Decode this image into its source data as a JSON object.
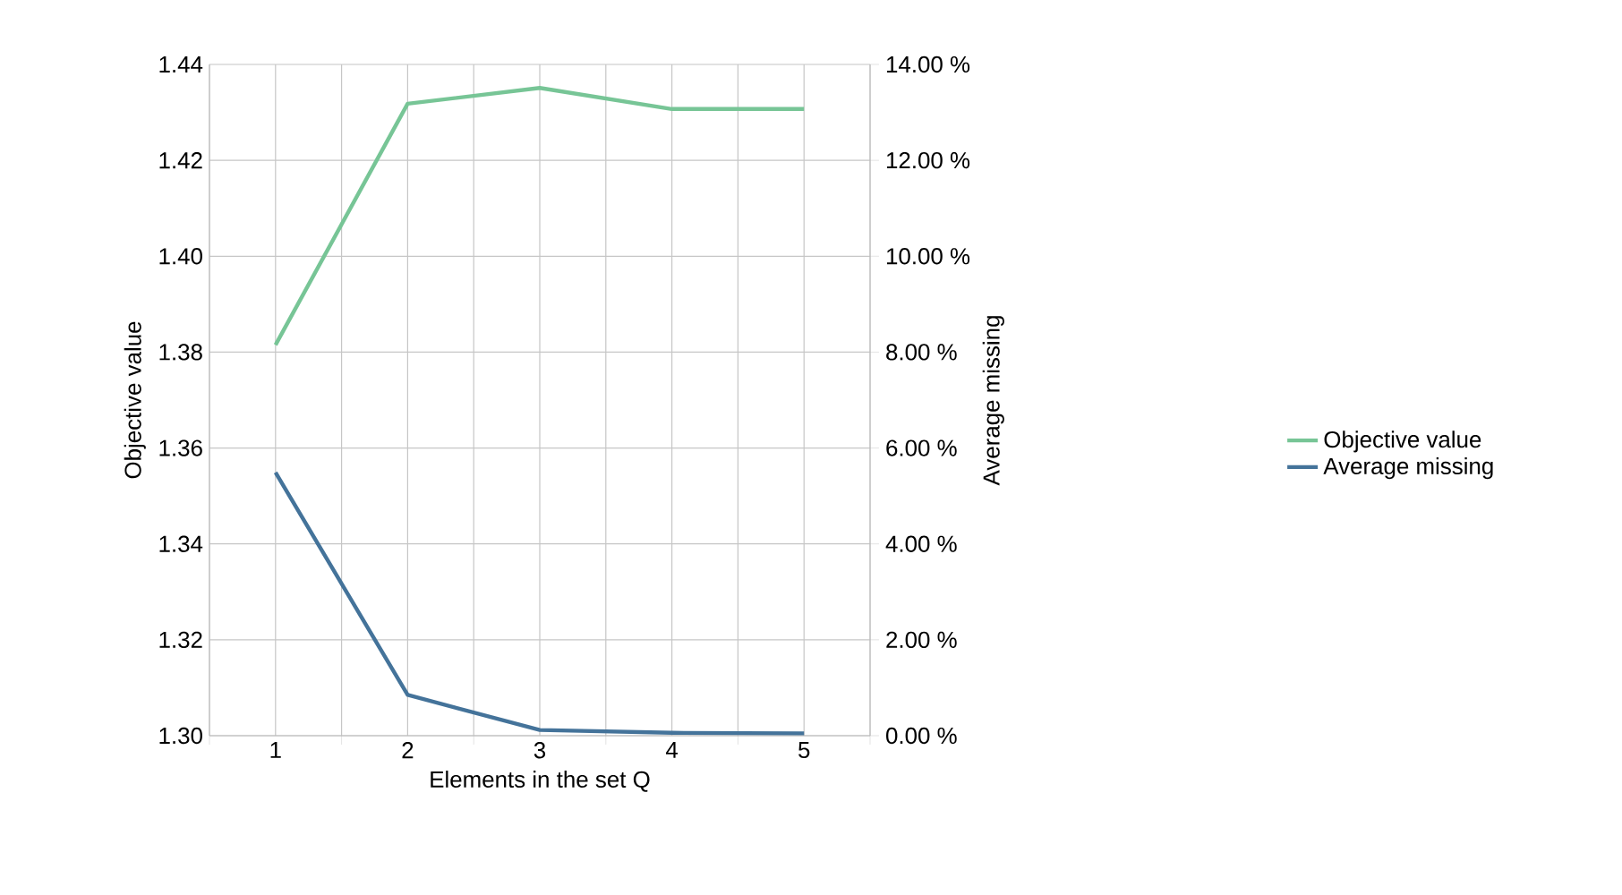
{
  "chart_data": {
    "type": "line",
    "xlabel": "Elements in the set Q",
    "ylabel": "Objective value",
    "y2label": "Average missing",
    "categories": [
      "1",
      "2",
      "3",
      "4",
      "5"
    ],
    "series": [
      {
        "name": "Objective value",
        "color": "#77c596",
        "values": [
          1.3815,
          1.4318,
          1.4351,
          1.4307,
          1.4307
        ]
      },
      {
        "name": "Average missing",
        "color": "#44739a",
        "axis": "y2",
        "values": [
          5.49,
          0.85,
          0.12,
          0.06,
          0.05
        ]
      }
    ],
    "ylim": [
      1.3,
      1.44
    ],
    "yticks": [
      {
        "value": 1.3,
        "label": "1.30"
      },
      {
        "value": 1.32,
        "label": "1.32"
      },
      {
        "value": 1.34,
        "label": "1.34"
      },
      {
        "value": 1.36,
        "label": "1.36"
      },
      {
        "value": 1.38,
        "label": "1.38"
      },
      {
        "value": 1.4,
        "label": "1.40"
      },
      {
        "value": 1.42,
        "label": "1.42"
      },
      {
        "value": 1.44,
        "label": "1.44"
      }
    ],
    "y2lim": [
      0,
      14
    ],
    "y2ticks": [
      {
        "value": 0,
        "label": "0.00 %"
      },
      {
        "value": 2,
        "label": "2.00 %"
      },
      {
        "value": 4,
        "label": "4.00 %"
      },
      {
        "value": 6,
        "label": "6.00 %"
      },
      {
        "value": 8,
        "label": "8.00 %"
      },
      {
        "value": 10,
        "label": "10.00 %"
      },
      {
        "value": 12,
        "label": "12.00 %"
      },
      {
        "value": 14,
        "label": "14.00 %"
      }
    ],
    "grid": true,
    "legend": "right",
    "marker": "none",
    "line_style": "solid"
  }
}
